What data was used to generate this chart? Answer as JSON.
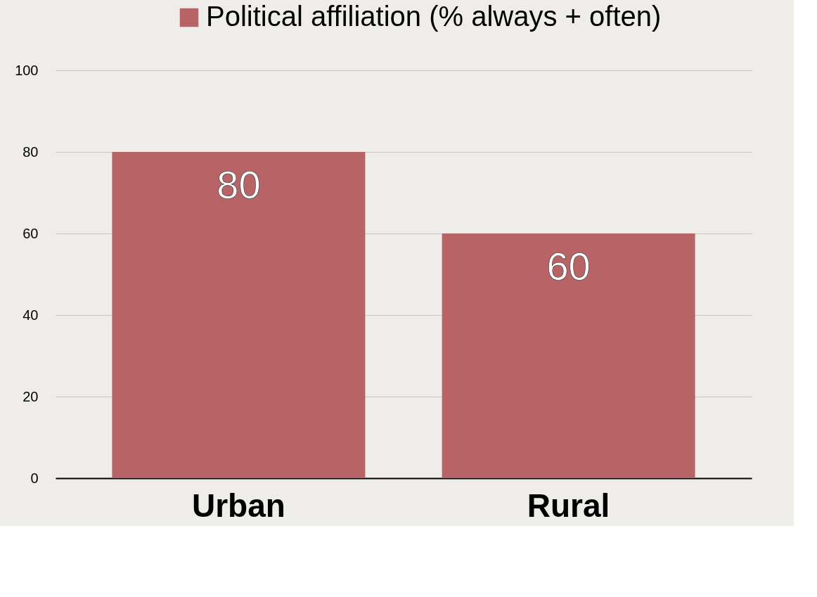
{
  "chart_data": {
    "type": "bar",
    "categories": [
      "Urban",
      "Rural"
    ],
    "series": [
      {
        "name": "Political affiliation (% always + often)",
        "color": "#b86366",
        "values": [
          80,
          60
        ]
      }
    ],
    "ylim": [
      0,
      100
    ],
    "yticks": [
      0,
      20,
      40,
      60,
      80,
      100
    ],
    "grid": "y",
    "legend": "top right",
    "data_labels": true
  }
}
